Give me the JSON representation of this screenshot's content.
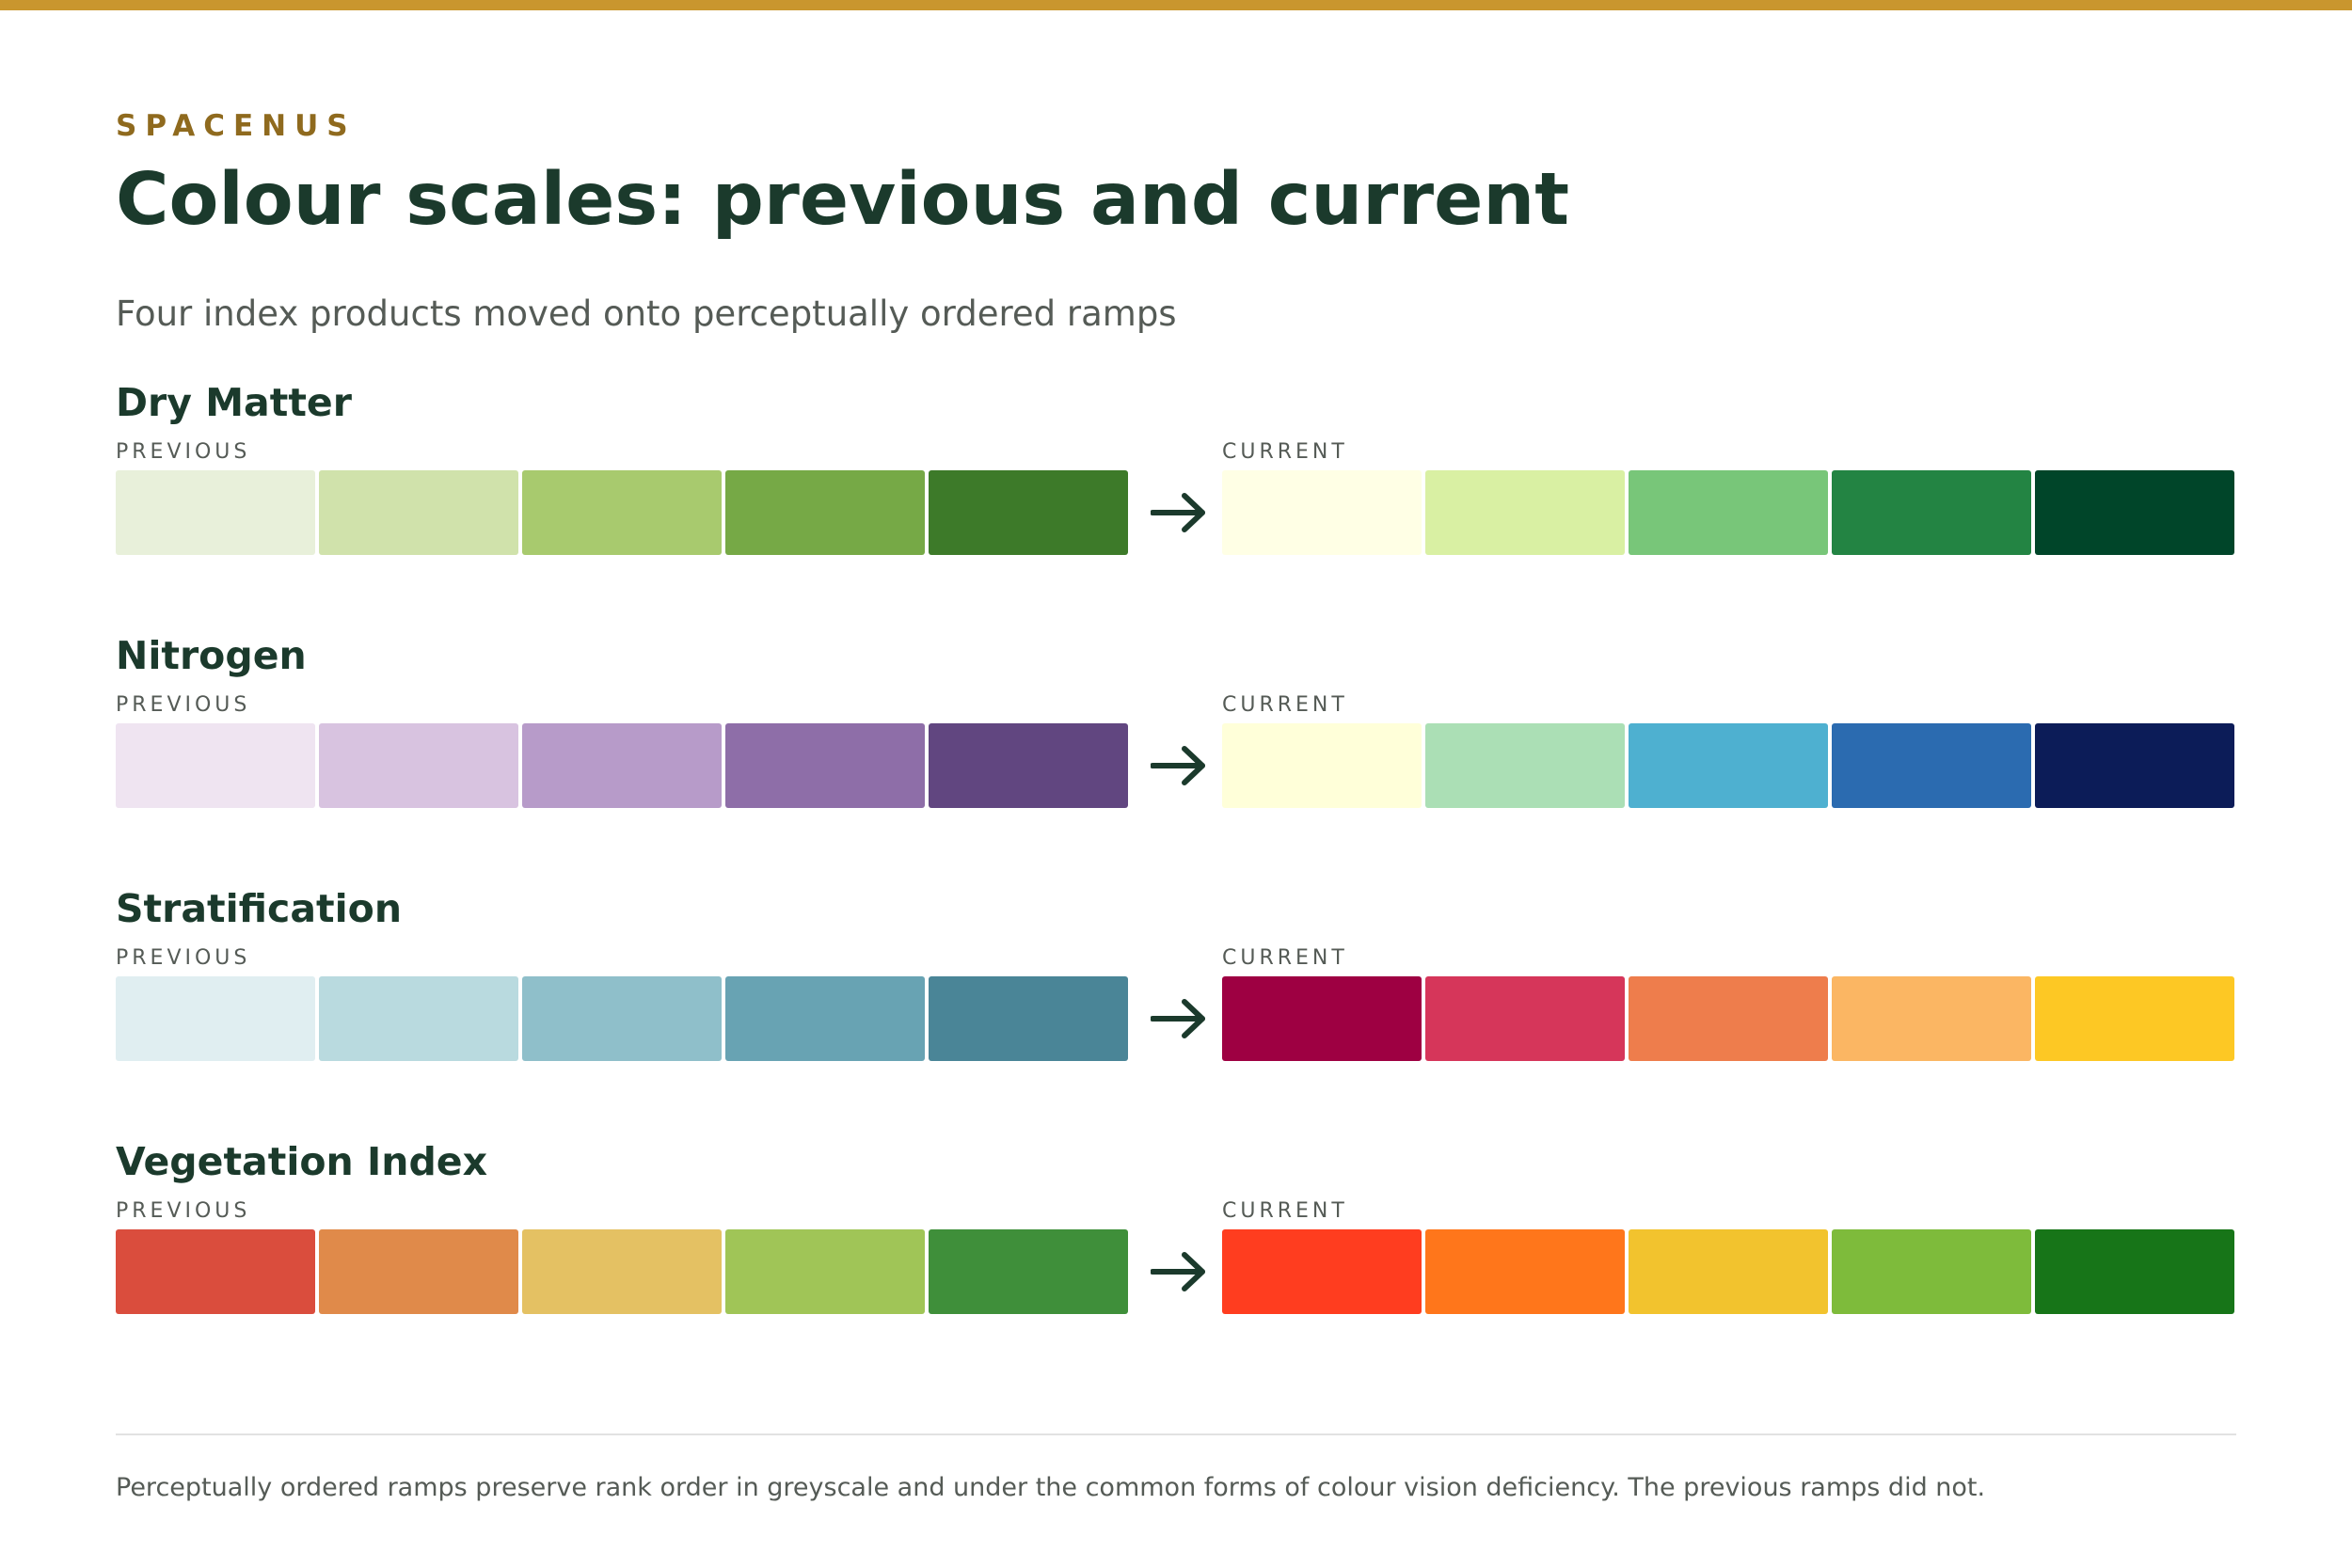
{
  "brand": "SPACENUS",
  "title": "Colour scales: previous and current",
  "subtitle": "Four index products moved onto perceptually ordered ramps",
  "labels": {
    "previous": "PREVIOUS",
    "current": "CURRENT"
  },
  "products": [
    {
      "name": "Dry Matter",
      "previous": [
        "#e8f0da",
        "#d0e2ab",
        "#a8ca6e",
        "#76a946",
        "#3d7a29"
      ],
      "current": [
        "#ffffe5",
        "#d9f0a3",
        "#78c679",
        "#238443",
        "#004529"
      ]
    },
    {
      "name": "Nitrogen",
      "previous": [
        "#efe4f1",
        "#d8c3e0",
        "#b79bc9",
        "#8e6ea8",
        "#614680"
      ],
      "current": [
        "#ffffd9",
        "#abdfb5",
        "#4eb0d0",
        "#2b6bb0",
        "#0c1c58"
      ]
    },
    {
      "name": "Stratification",
      "previous": [
        "#e0eef1",
        "#b9dadf",
        "#8fbfca",
        "#68a3b3",
        "#4a8597"
      ],
      "current": [
        "#9e0042",
        "#d6365a",
        "#ee7d4c",
        "#fbb663",
        "#fdc824"
      ]
    },
    {
      "name": "Vegetation Index",
      "previous": [
        "#da4d3d",
        "#e08a4a",
        "#e4c163",
        "#a0c557",
        "#3f8f3a"
      ],
      "current": [
        "#ff3d1f",
        "#ff761b",
        "#f2c32e",
        "#7ebb3b",
        "#177518"
      ]
    }
  ],
  "colors": {
    "accent_rule": "#c9962e",
    "brand": "#8f6a1e",
    "heading": "#1b3a2c",
    "muted_text": "#555b56"
  },
  "footnote": "Perceptually ordered ramps preserve rank order in greyscale and under the common forms of colour vision deficiency. The previous ramps did not."
}
